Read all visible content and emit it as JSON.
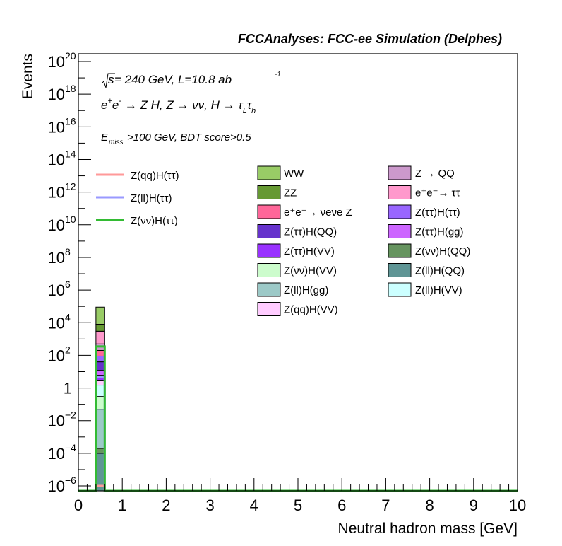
{
  "chart_data": {
    "type": "bar",
    "header": "FCCAnalyses: FCC-ee Simulation (Delphes)",
    "xlabel": "Neutral hadron mass [GeV]",
    "ylabel": "Events",
    "xlim": [
      0,
      10
    ],
    "ylim": [
      5e-07,
      3e+20
    ],
    "yscale": "log",
    "grid": false,
    "x_ticks": [
      0,
      1,
      2,
      3,
      4,
      5,
      6,
      7,
      8,
      9,
      10
    ],
    "y_ticks": [
      {
        "value": 1e-06,
        "base": "10",
        "exp": "−6"
      },
      {
        "value": 0.0001,
        "base": "10",
        "exp": "−4"
      },
      {
        "value": 0.01,
        "base": "10",
        "exp": "−2"
      },
      {
        "value": 1,
        "base": "1",
        "exp": ""
      },
      {
        "value": 100.0,
        "base": "10",
        "exp": "2"
      },
      {
        "value": 10000.0,
        "base": "10",
        "exp": "4"
      },
      {
        "value": 1000000.0,
        "base": "10",
        "exp": "6"
      },
      {
        "value": 100000000.0,
        "base": "10",
        "exp": "8"
      },
      {
        "value": 10000000000.0,
        "base": "10",
        "exp": "10"
      },
      {
        "value": 1000000000000.0,
        "base": "10",
        "exp": "12"
      },
      {
        "value": 100000000000000.0,
        "base": "10",
        "exp": "14"
      },
      {
        "value": 1e+16,
        "base": "10",
        "exp": "16"
      },
      {
        "value": 1e+18,
        "base": "10",
        "exp": "18"
      },
      {
        "value": 1e+20,
        "base": "10",
        "exp": "20"
      }
    ],
    "annotations": {
      "energy": {
        "sqrt": "s",
        "rest": " = 240 GeV, L=10.8 ab",
        "sup": "-1"
      },
      "process": "e⁺e⁻ → Z H, Z → νν, H → τ_L τ_h",
      "cut_E": "E",
      "cut_sub": "miss",
      "cut_rest": ">100 GeV, BDT score>0.5"
    },
    "bin": {
      "x_low": 0.4,
      "x_high": 0.6
    },
    "stack": [
      {
        "name": "Z(ll)H(QQ)",
        "color": "#5f9595",
        "low": 5e-07,
        "high": 0.0001
      },
      {
        "name": "Z(νν)H(QQ)",
        "color": "#66945f",
        "low": 0.0001,
        "high": 0.0002
      },
      {
        "name": "Z(ll)H(gg)",
        "color": "#9cc9c7",
        "low": 0.0002,
        "high": 0.05
      },
      {
        "name": "Z(νν)H(VV)",
        "color": "#ccfccc",
        "low": 0.05,
        "high": 0.3
      },
      {
        "name": "Z(ll)H(VV)",
        "color": "#ccffff",
        "low": 0.3,
        "high": 1.5
      },
      {
        "name": "Z(qq)H(VV)",
        "color": "#ffccff",
        "low": 1.5,
        "high": 3
      },
      {
        "name": "Z(ττ)H(VV)",
        "color": "#9932ff",
        "low": 3,
        "high": 6
      },
      {
        "name": "Z(ττ)H(gg)",
        "color": "#cc66ff",
        "low": 6,
        "high": 12
      },
      {
        "name": "Z(ττ)H(QQ)",
        "color": "#6633cc",
        "low": 12,
        "high": 40
      },
      {
        "name": "Z(ττ)H(ττ)",
        "color": "#9966ff",
        "low": 40,
        "high": 90
      },
      {
        "name": "e⁺e⁻→ νeνe Z",
        "color": "#ff6699",
        "low": 90,
        "high": 200
      },
      {
        "name": "Z → QQ",
        "color": "#cc99cc",
        "low": 200,
        "high": 500
      },
      {
        "name": "e⁺e⁻→ ττ",
        "color": "#ff99cc",
        "low": 500,
        "high": 3000
      },
      {
        "name": "ZZ",
        "color": "#669933",
        "low": 3000,
        "high": 8000
      },
      {
        "name": "WW",
        "color": "#99cc66",
        "low": 8000,
        "high": 90000
      }
    ],
    "signals": [
      {
        "name": "Z(qq)H(ττ)",
        "color": "#ff9999",
        "value": 1e-06
      },
      {
        "name": "Z(ll)H(ττ)",
        "color": "#9999ff",
        "value": 5
      },
      {
        "name": "Z(νν)H(ττ)",
        "color": "#33bb33",
        "value": 350
      }
    ],
    "legend_signals": [
      {
        "name": "Z(qq)H(ττ)",
        "color": "#ff9999"
      },
      {
        "name": "Z(ll)H(ττ)",
        "color": "#9999ff"
      },
      {
        "name": "Z(νν)H(ττ)",
        "color": "#33bb33"
      }
    ],
    "legend_col1": [
      {
        "name": "WW",
        "color": "#99cc66"
      },
      {
        "name": "ZZ",
        "color": "#669933"
      },
      {
        "name": "e⁺e⁻→ νeνe Z",
        "color": "#ff6699"
      },
      {
        "name": "Z(ττ)H(QQ)",
        "color": "#6633cc"
      },
      {
        "name": "Z(ττ)H(VV)",
        "color": "#9932ff"
      },
      {
        "name": "Z(νν)H(VV)",
        "color": "#ccfccc"
      },
      {
        "name": "Z(ll)H(gg)",
        "color": "#9cc9c7"
      },
      {
        "name": "Z(qq)H(VV)",
        "color": "#ffccff"
      }
    ],
    "legend_col2": [
      {
        "name": "Z → QQ",
        "color": "#cc99cc"
      },
      {
        "name": "e⁺e⁻→ ττ",
        "color": "#ff99cc"
      },
      {
        "name": "Z(ττ)H(ττ)",
        "color": "#9966ff"
      },
      {
        "name": "Z(ττ)H(gg)",
        "color": "#cc66ff"
      },
      {
        "name": "Z(νν)H(QQ)",
        "color": "#66945f"
      },
      {
        "name": "Z(ll)H(QQ)",
        "color": "#5f9595"
      },
      {
        "name": "Z(ll)H(VV)",
        "color": "#ccffff"
      }
    ]
  }
}
